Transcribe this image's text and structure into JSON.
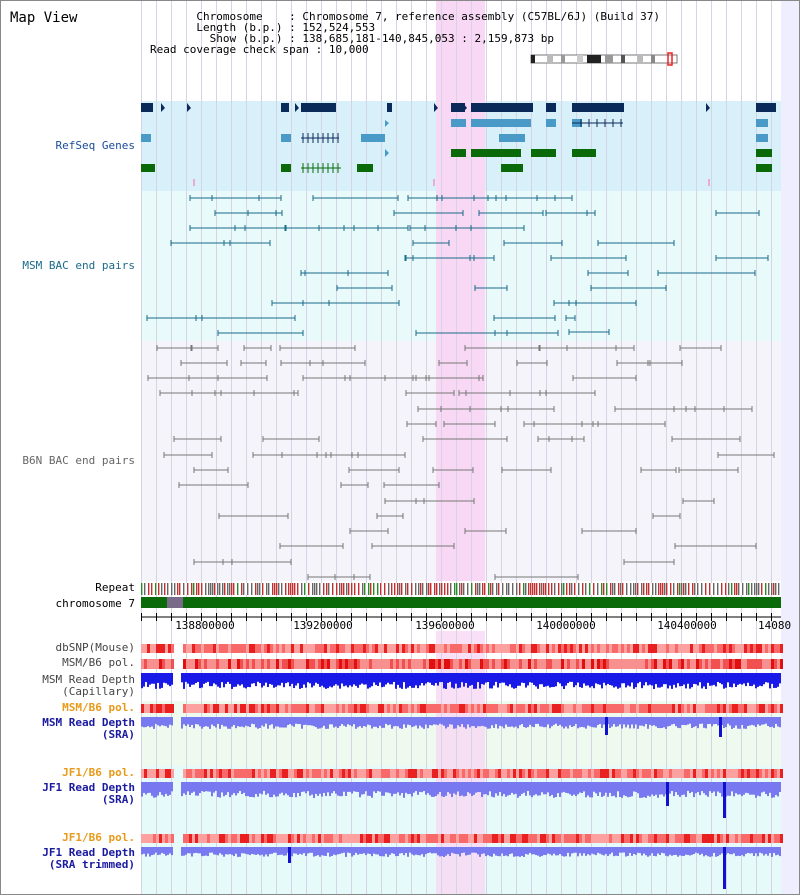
{
  "header": {
    "title": "Map View",
    "chromosome_label": "Chromosome",
    "chromosome_value": "Chromosome 7, reference assembly (C57BL/6J) (Build 37)",
    "length_label": "Length (b.p.)",
    "length_value": "152,524,553",
    "show_label": "Show (b.p.)",
    "show_value": "138,685,181-140,845,053 : 2,159,873 bp",
    "coverage_label": "Read coverage check span",
    "coverage_value": "10,000"
  },
  "tracks": {
    "refseq": "RefSeq Genes",
    "msm_bac": "MSM BAC end pairs",
    "b6n_bac": "B6N BAC end pairs",
    "repeat": "Repeat",
    "chromosome": "chromosome 7",
    "dbsnp": "dbSNP(Mouse)",
    "msm_b6_pol": "MSM/B6 pol.",
    "msm_read_depth_cap_1": "MSM Read Depth",
    "msm_read_depth_cap_2": "(Capillary)",
    "msm_b6_pol_sra": "MSM/B6 pol.",
    "msm_read_depth_sra_1": "MSM Read Depth",
    "msm_read_depth_sra_2": "(SRA)",
    "jf1_b6_pol_sra": "JF1/B6 pol.",
    "jf1_read_depth_sra_1": "JF1 Read Depth",
    "jf1_read_depth_sra_2": "(SRA)",
    "jf1_b6_pol_trim": "JF1/B6 pol.",
    "jf1_read_depth_trim_1": "JF1 Read Depth",
    "jf1_read_depth_trim_2": "(SRA trimmed)"
  },
  "axis": {
    "ticks": [
      "138800000",
      "139200000",
      "139600000",
      "140000000",
      "140400000",
      "14080"
    ]
  },
  "colors": {
    "refseq_bg": "#d8f0fa",
    "msm_bac_bg": "#e8fafa",
    "b6n_bac_bg": "#f4f4fa",
    "highlight": "#f8d8f4",
    "gene_dark": "#0a2a5a",
    "gene_mid": "#4a9ac8",
    "gene_green": "#0a6a0a",
    "bac_line": "#1a6a8a",
    "b6n_line": "#777777",
    "depth_blue": "#1a1ae8",
    "depth_light": "#7878f0",
    "label_blue": "#1a1aa0",
    "label_orange": "#e89a1a"
  }
}
